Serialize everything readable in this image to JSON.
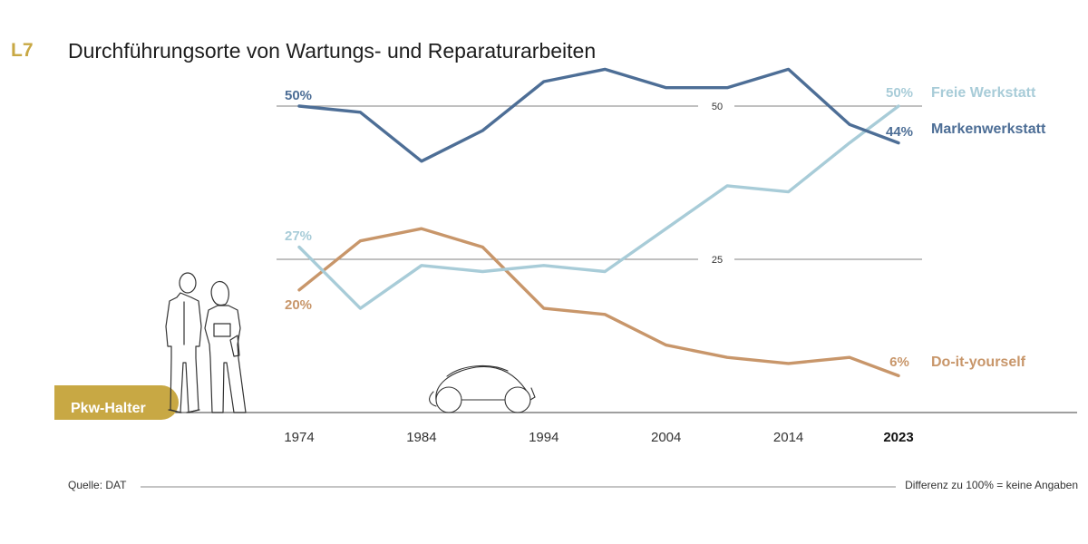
{
  "header": {
    "code": "L7",
    "title": "Durchführungsorte von Wartungs- und Reparaturarbeiten"
  },
  "badge": {
    "label": "Pkw-Halter"
  },
  "footer": {
    "source": "Quelle: DAT",
    "note": "Differenz zu 100% = keine Angaben"
  },
  "colors": {
    "markenwerkstatt": "#4d6e96",
    "freie_werkstatt": "#a8ccd8",
    "do_it_yourself": "#c8966a",
    "accent": "#c8a844"
  },
  "icons": {
    "people": "two-persons-illustration",
    "car": "car-sketch"
  },
  "chart_data": {
    "type": "line",
    "title": "Durchführungsorte von Wartungs- und Reparaturarbeiten",
    "xlabel": "",
    "ylabel": "",
    "xlim": [
      1974,
      2023
    ],
    "ylim": [
      0,
      55
    ],
    "x_ticks": [
      {
        "value": 1974,
        "label": "1974",
        "bold": false
      },
      {
        "value": 1984,
        "label": "1984",
        "bold": false
      },
      {
        "value": 1994,
        "label": "1994",
        "bold": false
      },
      {
        "value": 2004,
        "label": "2004",
        "bold": false
      },
      {
        "value": 2014,
        "label": "2014",
        "bold": false
      },
      {
        "value": 2023,
        "label": "2023",
        "bold": true
      }
    ],
    "gridlines": [
      {
        "value": 50,
        "label": "50"
      },
      {
        "value": 25,
        "label": "25"
      }
    ],
    "series": [
      {
        "name": "Markenwerkstatt",
        "color": "#4d6e96",
        "x": [
          1974,
          1979,
          1984,
          1989,
          1994,
          1999,
          2004,
          2009,
          2014,
          2019,
          2023
        ],
        "y": [
          50,
          49,
          41,
          46,
          54,
          56,
          53,
          53,
          56,
          47,
          44
        ],
        "start_label": "50%",
        "end_label": "44%"
      },
      {
        "name": "Freie Werkstatt",
        "color": "#a8ccd8",
        "x": [
          1974,
          1979,
          1984,
          1989,
          1994,
          1999,
          2004,
          2009,
          2014,
          2019,
          2023
        ],
        "y": [
          27,
          17,
          24,
          23,
          24,
          23,
          30,
          37,
          36,
          44,
          50
        ],
        "start_label": "27%",
        "end_label": "50%"
      },
      {
        "name": "Do-it-yourself",
        "color": "#c8966a",
        "x": [
          1974,
          1979,
          1984,
          1989,
          1994,
          1999,
          2004,
          2009,
          2014,
          2019,
          2023
        ],
        "y": [
          20,
          28,
          30,
          27,
          17,
          16,
          11,
          9,
          8,
          9,
          6
        ],
        "start_label": "20%",
        "end_label": "6%"
      }
    ]
  }
}
